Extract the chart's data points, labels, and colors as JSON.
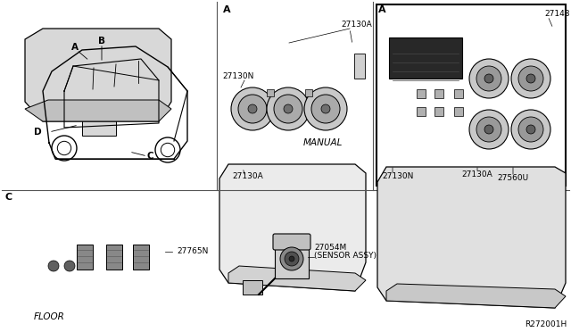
{
  "bg_color": "#ffffff",
  "fig_ref": "R272001H",
  "labels": {
    "A_top_left": "A",
    "B_top": "B",
    "C_bottom_left_car": "C",
    "D_left": "D",
    "A_mid_section": "A",
    "A_right_section": "A",
    "C_section_label": "C",
    "MANUAL": "MANUAL",
    "FLOOR": "FLOOR"
  },
  "part_labels": {
    "27130A_mid_top": "27130A",
    "27130N_mid": "27130N",
    "27130A_mid_bot": "27130A",
    "27148_right": "27148",
    "27130A_right": "27130A",
    "27130N_right": "27130N",
    "27560U_right": "27560U",
    "27765N": "27765N",
    "27054M_line1": "27054M",
    "27054M_line2": "(SENSOR ASSY)"
  }
}
